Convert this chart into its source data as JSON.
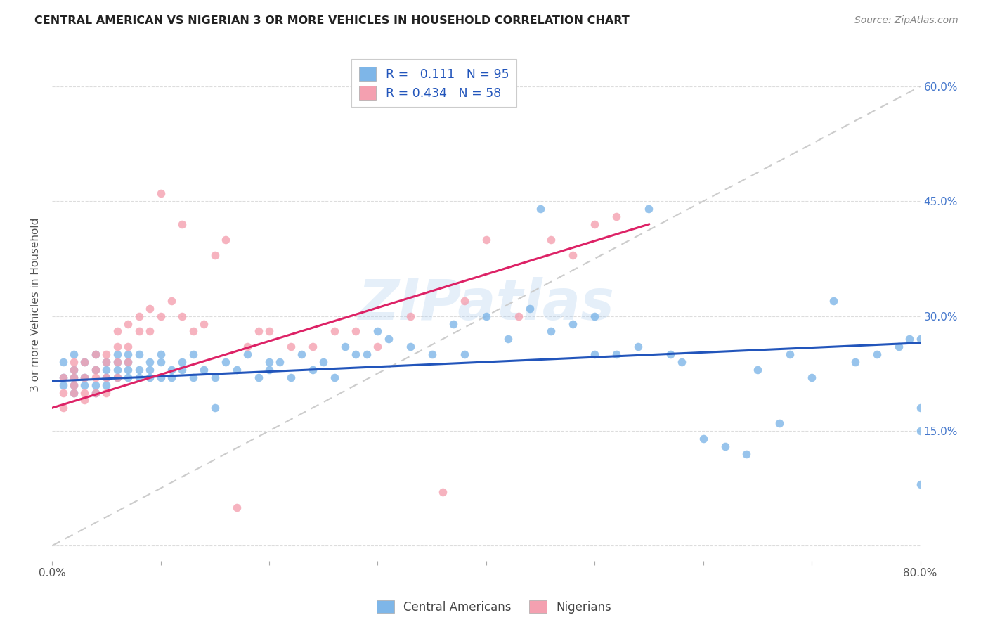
{
  "title": "CENTRAL AMERICAN VS NIGERIAN 3 OR MORE VEHICLES IN HOUSEHOLD CORRELATION CHART",
  "source": "Source: ZipAtlas.com",
  "ylabel": "3 or more Vehicles in Household",
  "xlim": [
    0.0,
    0.8
  ],
  "ylim": [
    -0.02,
    0.65
  ],
  "x_ticks": [
    0.0,
    0.1,
    0.2,
    0.3,
    0.4,
    0.5,
    0.6,
    0.7,
    0.8
  ],
  "y_ticks": [
    0.0,
    0.15,
    0.3,
    0.45,
    0.6
  ],
  "y_tick_labels_right": [
    "",
    "15.0%",
    "30.0%",
    "45.0%",
    "60.0%"
  ],
  "blue_color": "#7EB6E8",
  "pink_color": "#F4A0B0",
  "blue_line_color": "#2255BB",
  "pink_line_color": "#DD2266",
  "diagonal_color": "#CCCCCC",
  "watermark": "ZIPatlas",
  "legend_R_blue": "0.111",
  "legend_N_blue": "95",
  "legend_R_pink": "0.434",
  "legend_N_pink": "58",
  "background_color": "#FFFFFF",
  "grid_color": "#DDDDDD",
  "blue_trend_x": [
    0.0,
    0.8
  ],
  "blue_trend_y": [
    0.215,
    0.265
  ],
  "pink_trend_x": [
    0.0,
    0.55
  ],
  "pink_trend_y": [
    0.18,
    0.42
  ],
  "blue_scatter_x": [
    0.01,
    0.01,
    0.01,
    0.02,
    0.02,
    0.02,
    0.02,
    0.02,
    0.03,
    0.03,
    0.03,
    0.04,
    0.04,
    0.04,
    0.04,
    0.05,
    0.05,
    0.05,
    0.05,
    0.06,
    0.06,
    0.06,
    0.06,
    0.07,
    0.07,
    0.07,
    0.07,
    0.08,
    0.08,
    0.08,
    0.09,
    0.09,
    0.09,
    0.1,
    0.1,
    0.1,
    0.11,
    0.11,
    0.12,
    0.12,
    0.13,
    0.13,
    0.14,
    0.15,
    0.15,
    0.16,
    0.17,
    0.18,
    0.19,
    0.2,
    0.2,
    0.21,
    0.22,
    0.23,
    0.24,
    0.25,
    0.26,
    0.27,
    0.28,
    0.29,
    0.3,
    0.31,
    0.33,
    0.35,
    0.37,
    0.38,
    0.4,
    0.42,
    0.44,
    0.45,
    0.46,
    0.48,
    0.5,
    0.5,
    0.52,
    0.54,
    0.55,
    0.57,
    0.58,
    0.6,
    0.62,
    0.64,
    0.65,
    0.67,
    0.68,
    0.7,
    0.72,
    0.74,
    0.76,
    0.78,
    0.79,
    0.8,
    0.8,
    0.8,
    0.8
  ],
  "blue_scatter_y": [
    0.22,
    0.24,
    0.21,
    0.23,
    0.25,
    0.22,
    0.2,
    0.21,
    0.24,
    0.22,
    0.21,
    0.23,
    0.25,
    0.21,
    0.2,
    0.24,
    0.22,
    0.23,
    0.21,
    0.24,
    0.23,
    0.25,
    0.22,
    0.24,
    0.23,
    0.22,
    0.25,
    0.23,
    0.22,
    0.25,
    0.24,
    0.22,
    0.23,
    0.25,
    0.22,
    0.24,
    0.23,
    0.22,
    0.24,
    0.23,
    0.22,
    0.25,
    0.23,
    0.18,
    0.22,
    0.24,
    0.23,
    0.25,
    0.22,
    0.24,
    0.23,
    0.24,
    0.22,
    0.25,
    0.23,
    0.24,
    0.22,
    0.26,
    0.25,
    0.25,
    0.28,
    0.27,
    0.26,
    0.25,
    0.29,
    0.25,
    0.3,
    0.27,
    0.31,
    0.44,
    0.28,
    0.29,
    0.25,
    0.3,
    0.25,
    0.26,
    0.44,
    0.25,
    0.24,
    0.14,
    0.13,
    0.12,
    0.23,
    0.16,
    0.25,
    0.22,
    0.32,
    0.24,
    0.25,
    0.26,
    0.27,
    0.27,
    0.18,
    0.08,
    0.15
  ],
  "pink_scatter_x": [
    0.01,
    0.01,
    0.01,
    0.02,
    0.02,
    0.02,
    0.02,
    0.02,
    0.03,
    0.03,
    0.03,
    0.03,
    0.04,
    0.04,
    0.04,
    0.04,
    0.05,
    0.05,
    0.05,
    0.05,
    0.06,
    0.06,
    0.06,
    0.06,
    0.07,
    0.07,
    0.07,
    0.08,
    0.08,
    0.09,
    0.09,
    0.1,
    0.1,
    0.11,
    0.12,
    0.12,
    0.13,
    0.14,
    0.15,
    0.16,
    0.17,
    0.18,
    0.19,
    0.2,
    0.22,
    0.24,
    0.26,
    0.28,
    0.3,
    0.33,
    0.36,
    0.38,
    0.4,
    0.43,
    0.46,
    0.48,
    0.5,
    0.52
  ],
  "pink_scatter_y": [
    0.22,
    0.2,
    0.18,
    0.23,
    0.21,
    0.24,
    0.2,
    0.22,
    0.22,
    0.24,
    0.2,
    0.19,
    0.23,
    0.25,
    0.22,
    0.2,
    0.24,
    0.22,
    0.25,
    0.2,
    0.26,
    0.24,
    0.22,
    0.28,
    0.26,
    0.29,
    0.24,
    0.3,
    0.28,
    0.31,
    0.28,
    0.3,
    0.46,
    0.32,
    0.3,
    0.42,
    0.28,
    0.29,
    0.38,
    0.4,
    0.05,
    0.26,
    0.28,
    0.28,
    0.26,
    0.26,
    0.28,
    0.28,
    0.26,
    0.3,
    0.07,
    0.32,
    0.4,
    0.3,
    0.4,
    0.38,
    0.42,
    0.43
  ]
}
